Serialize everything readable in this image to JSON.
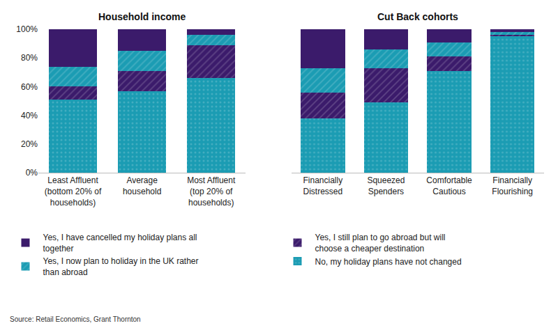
{
  "chart_data": [
    {
      "type": "bar",
      "title": "Household income",
      "stacked": true,
      "grid": false,
      "legend": "bottom",
      "categories": [
        "Least Affluent (bottom 20% of households)",
        "Average household",
        "Most Affluent (top 20% of households)"
      ],
      "ylim": [
        0,
        100
      ],
      "yticks": [
        {
          "value": 0,
          "label": "0%"
        },
        {
          "value": 20,
          "label": "20%"
        },
        {
          "value": 40,
          "label": "40%"
        },
        {
          "value": 60,
          "label": "60%"
        },
        {
          "value": 80,
          "label": "80%"
        },
        {
          "value": 100,
          "label": "100%"
        }
      ],
      "series": [
        {
          "name": "No, my holiday plans have not changed",
          "color": "#1b9cb3",
          "marker": "dots",
          "values": [
            51,
            57,
            66
          ]
        },
        {
          "name": "Yes, I still plan to go abroad but will choose a cheaper destination",
          "color": "#3b1b6b",
          "marker": "hatch",
          "values": [
            9,
            14,
            23
          ]
        },
        {
          "name": "Yes, I now plan to holiday in the UK rather than abroad",
          "color": "#1b9cb3",
          "marker": "hatch",
          "values": [
            14,
            14,
            7
          ]
        },
        {
          "name": "Yes, I have cancelled my holiday plans all together",
          "color": "#3b1b6b",
          "marker": "solid",
          "values": [
            26,
            15,
            4
          ]
        }
      ],
      "annotations": [
        "Source: Retail Economics, Grant Thornton"
      ]
    },
    {
      "type": "bar",
      "title": "Cut Back cohorts",
      "stacked": true,
      "grid": false,
      "tick_labels": "x",
      "categories": [
        "Financially Distressed",
        "Squeezed Spenders",
        "Comfortable Cautious",
        "Financially Flourishing"
      ],
      "ylim": [
        0,
        100
      ],
      "yticks": [
        0,
        20,
        40,
        60,
        80,
        100
      ],
      "series": [
        {
          "name": "No, my holiday plans have not changed",
          "color": "#1b9cb3",
          "marker": "dots",
          "values": [
            38,
            49,
            71,
            95
          ]
        },
        {
          "name": "Yes, I still plan to go abroad but will choose a cheaper destination",
          "color": "#3b1b6b",
          "marker": "hatch",
          "values": [
            18,
            24,
            10,
            1
          ]
        },
        {
          "name": "Yes, I now plan to holiday in the UK rather than abroad",
          "color": "#1b9cb3",
          "marker": "hatch",
          "values": [
            17,
            13,
            10,
            2
          ]
        },
        {
          "name": "Yes, I have cancelled my holiday plans all together",
          "color": "#3b1b6b",
          "marker": "solid",
          "values": [
            27,
            14,
            9,
            2
          ]
        }
      ]
    }
  ]
}
